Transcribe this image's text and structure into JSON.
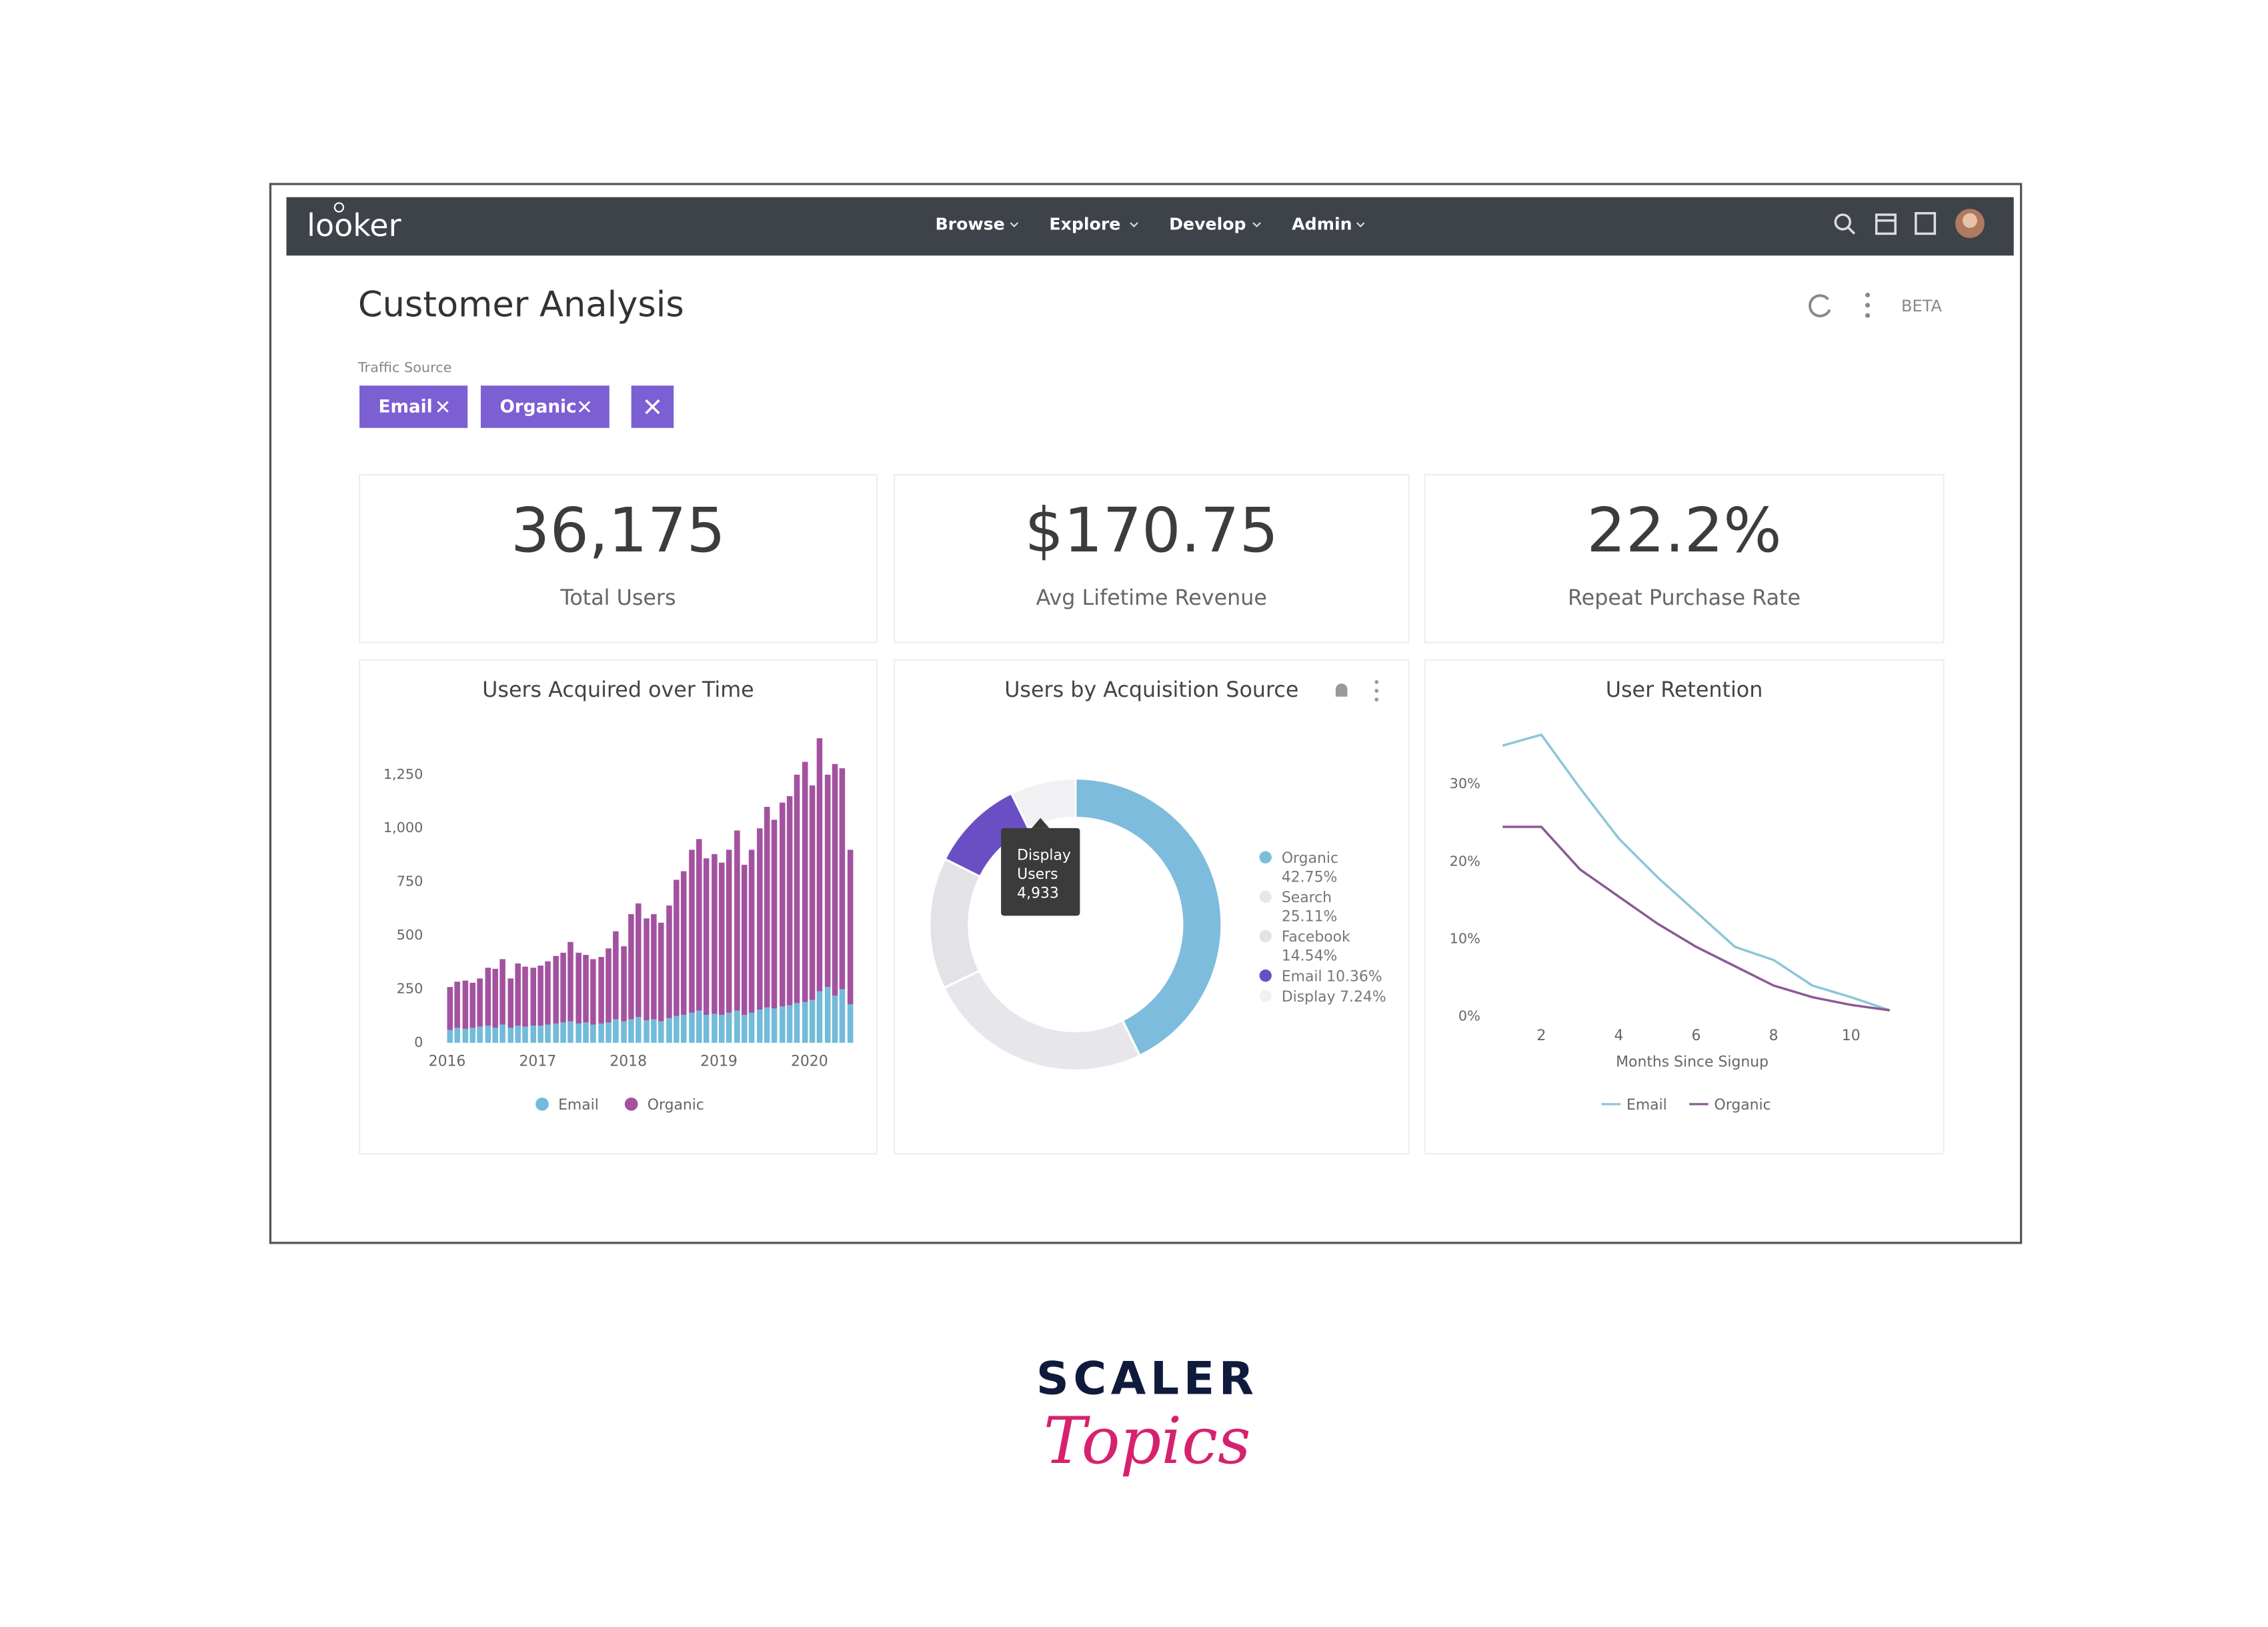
{
  "nav": {
    "logo": "looker",
    "menu": [
      "Browse",
      "Explore",
      "Develop",
      "Admin"
    ]
  },
  "header": {
    "title": "Customer Analysis",
    "badge": "BETA"
  },
  "filters": {
    "label": "Traffic Source",
    "chips": [
      "Email",
      "Organic"
    ]
  },
  "kpis": [
    {
      "value": "36,175",
      "label": "Total Users"
    },
    {
      "value": "$170.75",
      "label": "Avg Lifetime Revenue"
    },
    {
      "value": "22.2%",
      "label": "Repeat Purchase Rate"
    }
  ],
  "chart_data": [
    {
      "type": "bar",
      "stacked": true,
      "title": "Users Acquired over Time",
      "x": [
        2016,
        2016.08,
        2016.17,
        2016.25,
        2016.33,
        2016.42,
        2016.5,
        2016.58,
        2016.67,
        2016.75,
        2016.83,
        2016.92,
        2017,
        2017.08,
        2017.17,
        2017.25,
        2017.33,
        2017.42,
        2017.5,
        2017.58,
        2017.67,
        2017.75,
        2017.83,
        2017.92,
        2018,
        2018.08,
        2018.17,
        2018.25,
        2018.33,
        2018.42,
        2018.5,
        2018.58,
        2018.67,
        2018.75,
        2018.83,
        2018.92,
        2019,
        2019.08,
        2019.17,
        2019.25,
        2019.33,
        2019.42,
        2019.5,
        2019.58,
        2019.67,
        2019.75,
        2019.83,
        2019.92,
        2020,
        2020.08,
        2020.17,
        2020.25,
        2020.33,
        2020.42
      ],
      "xlim": [
        2015.96,
        2020.55
      ],
      "xticks": [
        2016,
        2017,
        2018,
        2019,
        2020
      ],
      "ylim": [
        0,
        1430
      ],
      "yticks": [
        0,
        250,
        500,
        750,
        {
          "value": 1000,
          "label": "1,000"
        },
        {
          "value": 1250,
          "label": "1,250"
        }
      ],
      "series": [
        {
          "name": "Email",
          "color": "#72bbd9",
          "values": [
            60,
            70,
            65,
            70,
            75,
            80,
            70,
            85,
            70,
            80,
            75,
            80,
            80,
            85,
            90,
            95,
            100,
            90,
            95,
            85,
            90,
            95,
            110,
            100,
            110,
            120,
            105,
            110,
            100,
            115,
            125,
            130,
            140,
            150,
            130,
            135,
            130,
            140,
            150,
            130,
            140,
            155,
            165,
            160,
            170,
            175,
            185,
            190,
            200,
            240,
            260,
            220,
            250,
            180
          ]
        },
        {
          "name": "Organic",
          "color": "#a3529f",
          "values": [
            200,
            215,
            225,
            210,
            225,
            270,
            275,
            305,
            230,
            290,
            280,
            270,
            280,
            295,
            315,
            325,
            370,
            330,
            315,
            305,
            310,
            345,
            410,
            350,
            490,
            530,
            475,
            490,
            460,
            525,
            635,
            670,
            760,
            800,
            730,
            745,
            710,
            760,
            840,
            700,
            760,
            845,
            935,
            880,
            950,
            975,
            1065,
            1120,
            1000,
            1180,
            990,
            1080,
            1030,
            720
          ]
        }
      ],
      "legend": "bottom"
    },
    {
      "type": "pie",
      "donut": true,
      "title": "Users by Acquisition Source",
      "categories": [
        "Organic",
        "Search",
        "Facebook",
        "Email",
        "Display"
      ],
      "values": [
        42.75,
        25.11,
        14.54,
        10.36,
        7.24
      ],
      "value_labels": [
        "42.75%",
        "25.11%",
        "14.54%",
        "10.36%",
        "7.24%"
      ],
      "colors": [
        "#7dbcdc",
        "#e7e7eb",
        "#e2e2e7",
        "#6a4fc4",
        "#f1f1f4"
      ],
      "tooltip": {
        "title": "Display",
        "label": "Users",
        "value": "4,933"
      },
      "legend": "right"
    },
    {
      "type": "line",
      "title": "User Retention",
      "xlabel": "Months Since Signup",
      "x": [
        1,
        2,
        3,
        4,
        5,
        6,
        7,
        8,
        9,
        10,
        11
      ],
      "xlim": [
        0.5,
        11.9
      ],
      "xticks": [
        2,
        4,
        6,
        8,
        10
      ],
      "ylim": [
        -2,
        38
      ],
      "yticks": [
        {
          "value": 0,
          "label": "0%"
        },
        {
          "value": 10,
          "label": "10%"
        },
        {
          "value": 20,
          "label": "20%"
        },
        {
          "value": 30,
          "label": "30%"
        }
      ],
      "series": [
        {
          "name": "Email",
          "color": "#8cc6d8",
          "values": [
            35,
            36.4,
            29.5,
            23,
            18,
            13.5,
            9,
            7.3,
            4,
            2.5,
            0.8
          ]
        },
        {
          "name": "Organic",
          "color": "#8a5a94",
          "values": [
            24.5,
            24.5,
            19,
            15.5,
            12,
            9,
            6.5,
            4,
            2.5,
            1.5,
            0.8
          ]
        }
      ],
      "legend": "bottom"
    }
  ],
  "footer": {
    "brand": "SCALER",
    "tagline": "Topics"
  }
}
